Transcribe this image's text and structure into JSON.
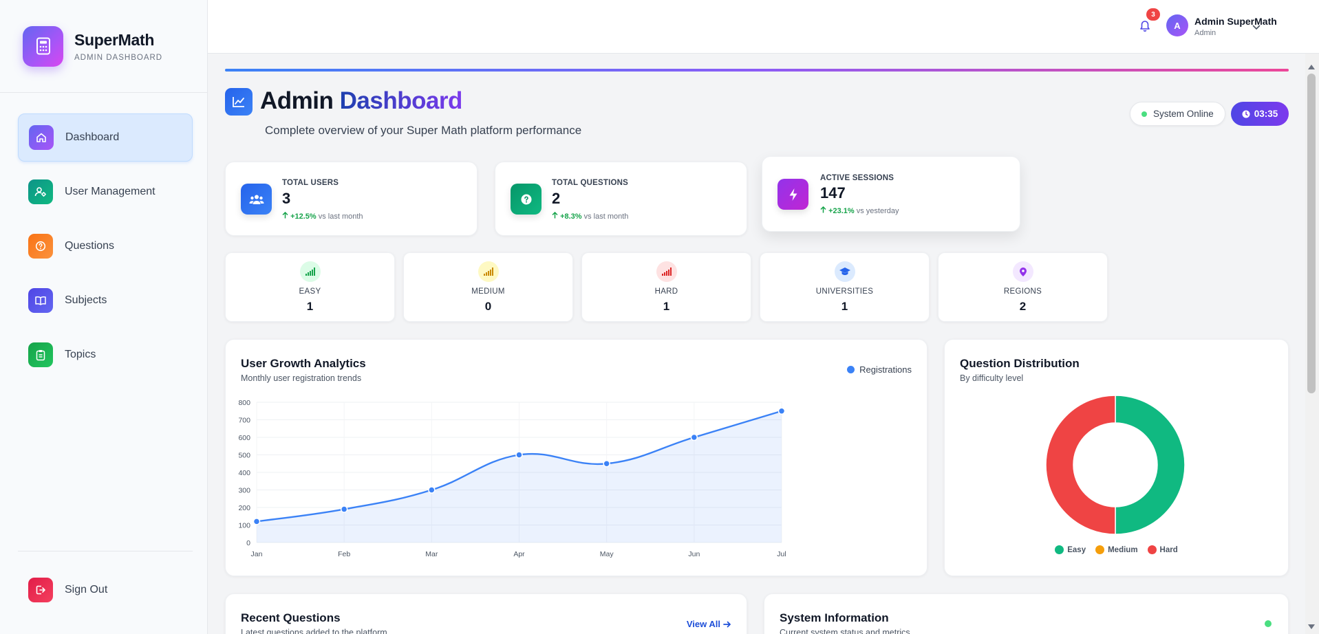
{
  "brand": {
    "name": "SuperMath",
    "subtitle": "ADMIN DASHBOARD"
  },
  "sidebar": {
    "items": [
      {
        "label": "Dashboard",
        "icon": "home-icon",
        "color": "#7c3aed",
        "active": true
      },
      {
        "label": "User Management",
        "icon": "user-cog-icon",
        "color": "#0d9488"
      },
      {
        "label": "Questions",
        "icon": "question-circle-icon",
        "color": "#f97316"
      },
      {
        "label": "Subjects",
        "icon": "book-icon",
        "color": "#4f46e5"
      },
      {
        "label": "Topics",
        "icon": "clipboard-icon",
        "color": "#16a34a"
      }
    ],
    "signout": {
      "label": "Sign Out",
      "icon": "logout-icon",
      "color": "#e11d48"
    }
  },
  "topbar": {
    "notifications": "3",
    "avatar_initial": "A",
    "user_name": "Admin SuperMath",
    "user_role": "Admin"
  },
  "header": {
    "title_part1": "Admin",
    "title_part2": "Dashboard",
    "subtitle": "Complete overview of your Super Math platform performance",
    "status": "System Online",
    "time": "03:35"
  },
  "stats": [
    {
      "label": "TOTAL USERS",
      "value": "3",
      "trend": "+12.5%",
      "trend_note": "vs last month",
      "color": "#2563eb",
      "icon": "users-icon"
    },
    {
      "label": "TOTAL QUESTIONS",
      "value": "2",
      "trend": "+8.3%",
      "trend_note": "vs last month",
      "color": "#059669",
      "icon": "question-icon"
    },
    {
      "label": "ACTIVE SESSIONS",
      "value": "147",
      "trend": "+23.1%",
      "trend_note": "vs yesterday",
      "color": "#9333ea",
      "icon": "bolt-icon"
    }
  ],
  "mini": [
    {
      "label": "EASY",
      "value": "1",
      "color": "#16a34a",
      "bg": "#dcfce7",
      "icon": "signal-icon"
    },
    {
      "label": "MEDIUM",
      "value": "0",
      "color": "#ca8a04",
      "bg": "#fef9c3",
      "icon": "signal-icon"
    },
    {
      "label": "HARD",
      "value": "1",
      "color": "#dc2626",
      "bg": "#fee2e2",
      "icon": "signal-icon"
    },
    {
      "label": "UNIVERSITIES",
      "value": "1",
      "color": "#2563eb",
      "bg": "#dbeafe",
      "icon": "graduation-cap-icon"
    },
    {
      "label": "REGIONS",
      "value": "2",
      "color": "#9333ea",
      "bg": "#f3e8ff",
      "icon": "map-pin-icon"
    }
  ],
  "growth": {
    "title": "User Growth Analytics",
    "subtitle": "Monthly user registration trends",
    "legend": "Registrations"
  },
  "distribution": {
    "title": "Question Distribution",
    "subtitle": "By difficulty level",
    "legend": [
      "Easy",
      "Medium",
      "Hard"
    ]
  },
  "recent": {
    "title": "Recent Questions",
    "subtitle": "Latest questions added to the platform",
    "view_all": "View All"
  },
  "system": {
    "title": "System Information",
    "subtitle": "Current system status and metrics"
  },
  "chart_data": [
    {
      "type": "line",
      "title": "User Growth Analytics",
      "x": [
        "Jan",
        "Feb",
        "Mar",
        "Apr",
        "May",
        "Jun",
        "Jul"
      ],
      "series": [
        {
          "name": "Registrations",
          "values": [
            120,
            190,
            300,
            500,
            450,
            600,
            750
          ],
          "color": "#3b82f6"
        }
      ],
      "yticks": [
        0,
        100,
        200,
        300,
        400,
        500,
        600,
        700,
        800
      ],
      "ylim": [
        0,
        800
      ],
      "grid": true,
      "legend": "top-right"
    },
    {
      "type": "pie",
      "title": "Question Distribution",
      "categories": [
        "Easy",
        "Medium",
        "Hard"
      ],
      "values": [
        1,
        0,
        1
      ],
      "colors": [
        "#10b981",
        "#f59e0b",
        "#ef4444"
      ],
      "legend": "bottom"
    }
  ]
}
